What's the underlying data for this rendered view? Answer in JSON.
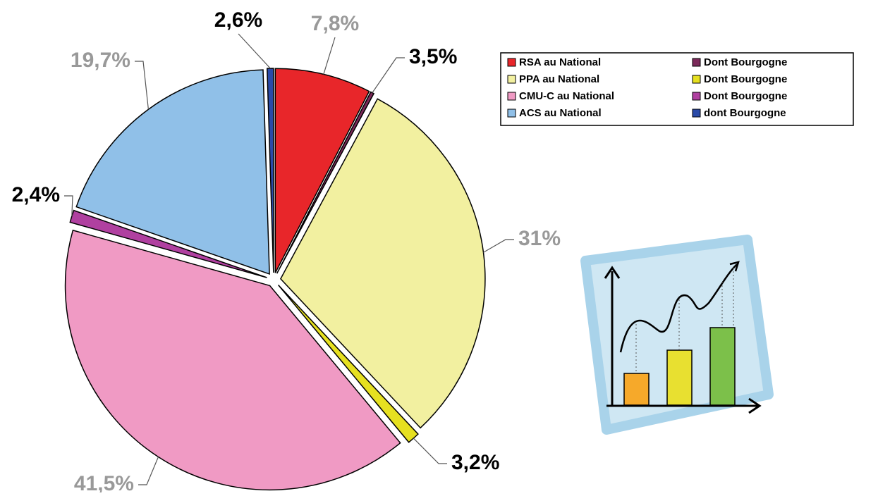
{
  "chart_data": {
    "type": "pie",
    "categories": [
      "RSA au National",
      "Dont Bourgogne",
      "PPA au National",
      "Dont Bourgogne",
      "CMU-C au National",
      "Dont Bourgogne",
      "ACS au National",
      "dont Bourgogne"
    ],
    "values": [
      7.8,
      3.5,
      31,
      3.2,
      41.5,
      2.4,
      19.7,
      2.6
    ],
    "value_labels": [
      "7,8%",
      "3,5%",
      "31%",
      "3,2%",
      "41,5%",
      "2,4%",
      "19,7%",
      "2,6%"
    ],
    "colors": [
      "#e8262a",
      "#7b2a5a",
      "#f2f0a0",
      "#e6e020",
      "#f09ac4",
      "#b040a0",
      "#90c0e8",
      "#2a4aa8"
    ]
  }
}
